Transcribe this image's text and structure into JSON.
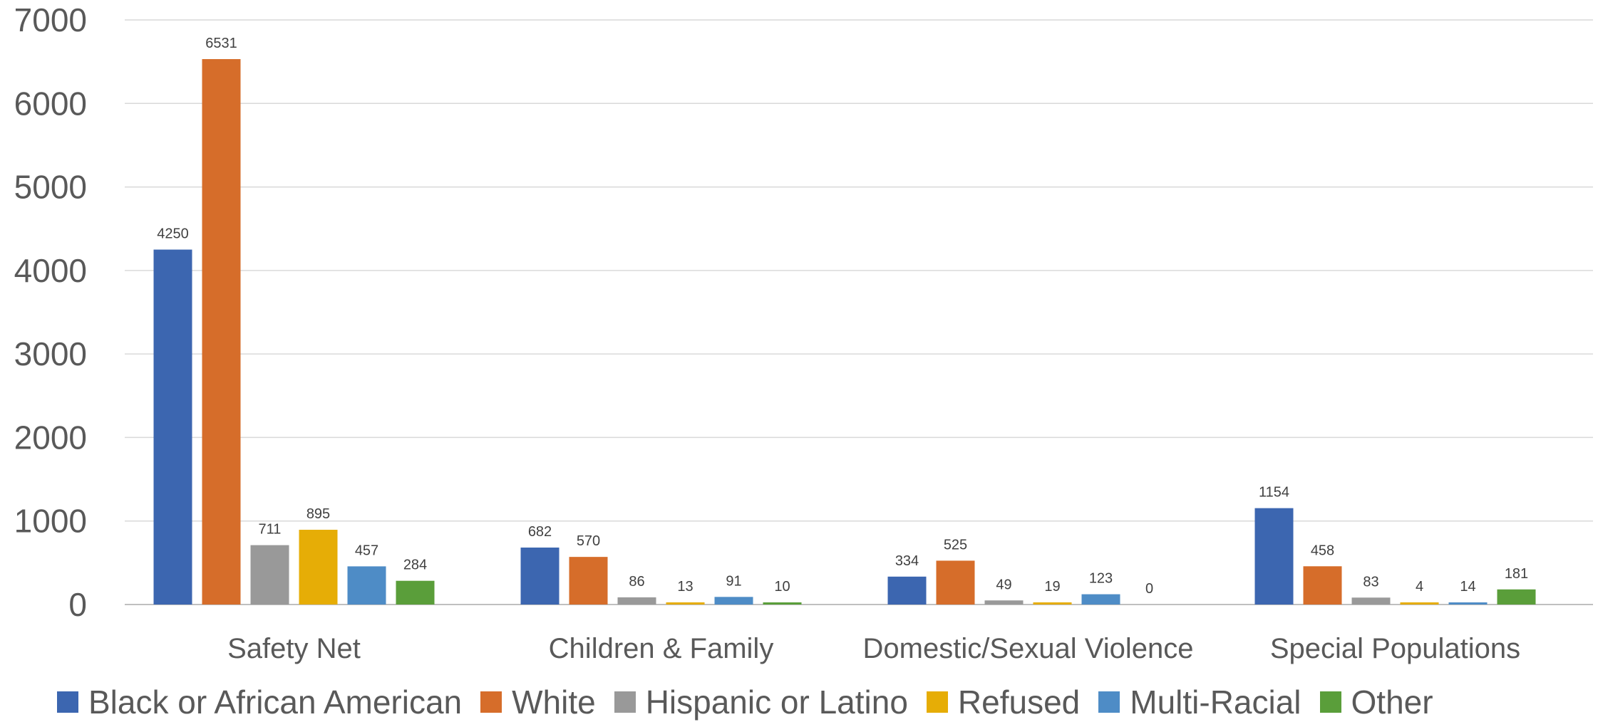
{
  "chart_data": {
    "type": "bar",
    "title": "",
    "xlabel": "",
    "ylabel": "",
    "ylim": [
      0,
      7000
    ],
    "yticks": [
      0,
      1000,
      2000,
      3000,
      4000,
      5000,
      6000,
      7000
    ],
    "grid": true,
    "legend_position": "bottom",
    "categories": [
      "Safety Net",
      "Children & Family",
      "Domestic/Sexual Violence",
      "Special Populations"
    ],
    "series": [
      {
        "name": "Black or African American",
        "color": "#3c66b0",
        "values": [
          4250,
          682,
          334,
          1154
        ]
      },
      {
        "name": "White",
        "color": "#d66d2a",
        "values": [
          6531,
          570,
          525,
          458
        ]
      },
      {
        "name": "Hispanic or Latino",
        "color": "#999999",
        "values": [
          711,
          86,
          49,
          83
        ]
      },
      {
        "name": "Refused",
        "color": "#e6ad06",
        "values": [
          895,
          13,
          19,
          4
        ]
      },
      {
        "name": "Multi-Racial",
        "color": "#4e8cc6",
        "values": [
          457,
          91,
          123,
          14
        ]
      },
      {
        "name": "Other",
        "color": "#5a9e3a",
        "values": [
          284,
          10,
          0,
          181
        ]
      }
    ]
  }
}
